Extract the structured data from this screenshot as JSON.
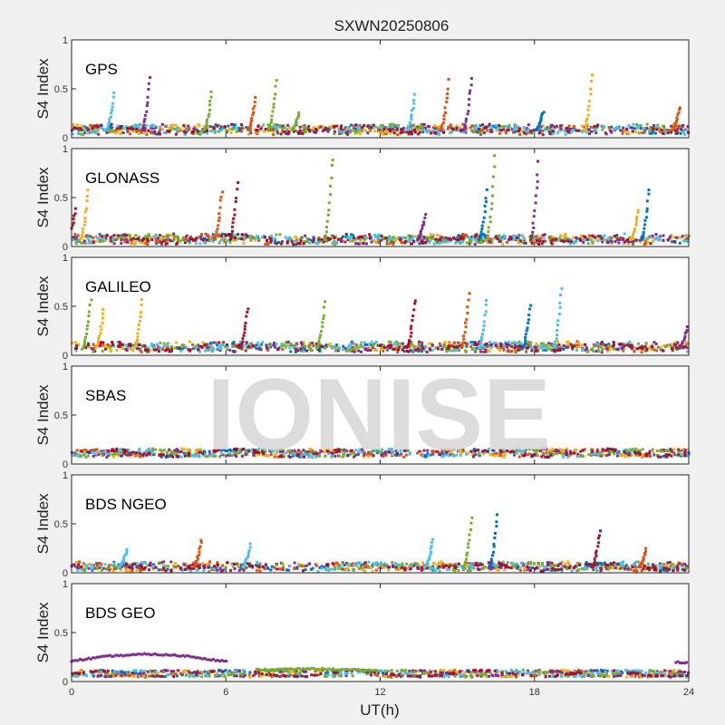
{
  "chart_data": {
    "type": "scatter",
    "title": "SXWN20250806",
    "xlabel": "UT(h)",
    "ylabel": "S4 Index",
    "xlim": [
      0,
      24
    ],
    "ylim": [
      0,
      1
    ],
    "xticks": [
      "0",
      "6",
      "12",
      "18",
      "24"
    ],
    "xtick_values": [
      0,
      6,
      12,
      18,
      24
    ],
    "yticks": [
      "0",
      "0.5",
      "1"
    ],
    "ytick_values": [
      0,
      0.5,
      1
    ],
    "watermark": "IONISE",
    "colors": [
      "#0072BD",
      "#D95319",
      "#EDB120",
      "#7E2F8E",
      "#77AC30",
      "#4DBEEE",
      "#A2142F"
    ],
    "panels": [
      {
        "name": "GPS",
        "baseline": 0.08,
        "noise": 0.05,
        "spikes": [
          [
            1.6,
            0.47,
            5
          ],
          [
            3.0,
            0.63,
            3
          ],
          [
            5.4,
            0.47,
            4
          ],
          [
            7.1,
            0.43,
            1
          ],
          [
            7.9,
            0.6,
            4
          ],
          [
            8.8,
            0.27,
            4
          ],
          [
            13.3,
            0.45,
            5
          ],
          [
            14.6,
            0.6,
            1
          ],
          [
            15.5,
            0.65,
            3
          ],
          [
            18.3,
            0.28,
            0
          ],
          [
            20.2,
            0.65,
            2
          ],
          [
            23.6,
            0.32,
            1
          ]
        ]
      },
      {
        "name": "GLONASS",
        "baseline": 0.07,
        "noise": 0.05,
        "spikes": [
          [
            0.1,
            0.4,
            6
          ],
          [
            0.6,
            0.6,
            2
          ],
          [
            5.8,
            0.6,
            1
          ],
          [
            6.4,
            0.68,
            6
          ],
          [
            10.1,
            0.95,
            4
          ],
          [
            13.7,
            0.33,
            3
          ],
          [
            16.1,
            0.6,
            0
          ],
          [
            16.4,
            0.95,
            4
          ],
          [
            18.1,
            0.9,
            3
          ],
          [
            22.0,
            0.4,
            2
          ],
          [
            22.4,
            0.6,
            0
          ]
        ]
      },
      {
        "name": "GALILEO",
        "baseline": 0.08,
        "noise": 0.05,
        "spikes": [
          [
            0.7,
            0.6,
            4
          ],
          [
            1.2,
            0.5,
            2
          ],
          [
            2.7,
            0.6,
            2
          ],
          [
            6.8,
            0.5,
            6
          ],
          [
            9.8,
            0.55,
            4
          ],
          [
            13.3,
            0.6,
            6
          ],
          [
            15.4,
            0.65,
            1
          ],
          [
            16.1,
            0.6,
            5
          ],
          [
            17.8,
            0.55,
            0
          ],
          [
            19.0,
            0.72,
            5
          ],
          [
            23.9,
            0.3,
            3
          ]
        ]
      },
      {
        "name": "SBAS",
        "baseline": 0.11,
        "noise": 0.03,
        "spikes": []
      },
      {
        "name": "BDS NGEO",
        "baseline": 0.06,
        "noise": 0.04,
        "spikes": [
          [
            2.1,
            0.25,
            5
          ],
          [
            5.0,
            0.35,
            1
          ],
          [
            6.9,
            0.3,
            5
          ],
          [
            14.0,
            0.35,
            5
          ],
          [
            15.5,
            0.6,
            4
          ],
          [
            16.5,
            0.62,
            0
          ],
          [
            20.5,
            0.45,
            6
          ],
          [
            22.3,
            0.25,
            1
          ]
        ]
      },
      {
        "name": "BDS GEO",
        "baseline": 0.08,
        "noise": 0.015,
        "spikes": [],
        "tracks": [
          {
            "color": 3,
            "points": [
              [
                0,
                0.21
              ],
              [
                1.5,
                0.26
              ],
              [
                3,
                0.28
              ],
              [
                4.5,
                0.26
              ],
              [
                6.1,
                0.2
              ]
            ]
          },
          {
            "color": 4,
            "points": [
              [
                7.2,
                0.12
              ],
              [
                9.5,
                0.13
              ],
              [
                12,
                0.11
              ]
            ]
          },
          {
            "color": 3,
            "points": [
              [
                23.5,
                0.2
              ],
              [
                24,
                0.19
              ]
            ]
          }
        ]
      }
    ]
  }
}
